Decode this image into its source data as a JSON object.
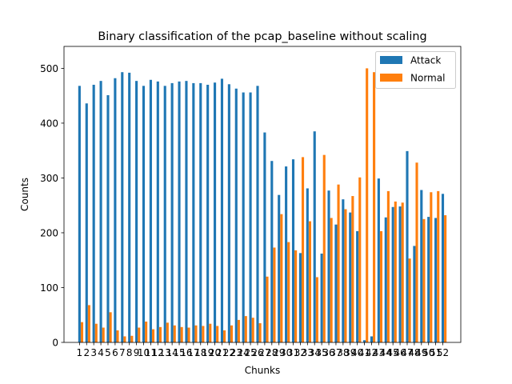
{
  "colors": {
    "attack": "#1f77b4",
    "normal": "#ff7f0e"
  },
  "chart_data": {
    "type": "bar",
    "title": "Binary classification of the pcap_baseline without scaling",
    "xlabel": "Chunks",
    "ylabel": "Counts",
    "ylim": [
      0,
      540
    ],
    "yticks": [
      0,
      100,
      200,
      300,
      400,
      500
    ],
    "legend_position": "top-right",
    "categories": [
      "1",
      "2",
      "3",
      "4",
      "5",
      "6",
      "7",
      "8",
      "9",
      "10",
      "11",
      "12",
      "13",
      "14",
      "15",
      "16",
      "17",
      "18",
      "19",
      "20",
      "21",
      "22",
      "23",
      "24",
      "25",
      "26",
      "27",
      "28",
      "29",
      "30",
      "31",
      "32",
      "33",
      "34",
      "35",
      "36",
      "37",
      "38",
      "39",
      "40",
      "41",
      "42",
      "43",
      "44",
      "45",
      "46",
      "47",
      "48",
      "49",
      "50",
      "51",
      "52"
    ],
    "series": [
      {
        "name": "Attack",
        "values": [
          468,
          436,
          470,
          477,
          451,
          482,
          493,
          492,
          477,
          468,
          479,
          476,
          468,
          473,
          476,
          477,
          473,
          473,
          470,
          474,
          481,
          471,
          463,
          456,
          456,
          468,
          383,
          331,
          269,
          321,
          334,
          163,
          281,
          385,
          162,
          277,
          215,
          261,
          237,
          203,
          4,
          11,
          299,
          228,
          247,
          248,
          349,
          176,
          278,
          229,
          227,
          271
        ]
      },
      {
        "name": "Normal",
        "values": [
          37,
          68,
          34,
          27,
          55,
          22,
          11,
          12,
          27,
          38,
          24,
          28,
          36,
          31,
          28,
          27,
          31,
          30,
          34,
          30,
          22,
          31,
          41,
          48,
          45,
          35,
          120,
          173,
          234,
          183,
          168,
          338,
          221,
          119,
          342,
          227,
          288,
          243,
          267,
          301,
          500,
          493,
          203,
          276,
          257,
          255,
          153,
          328,
          225,
          274,
          276,
          232
        ]
      }
    ]
  }
}
